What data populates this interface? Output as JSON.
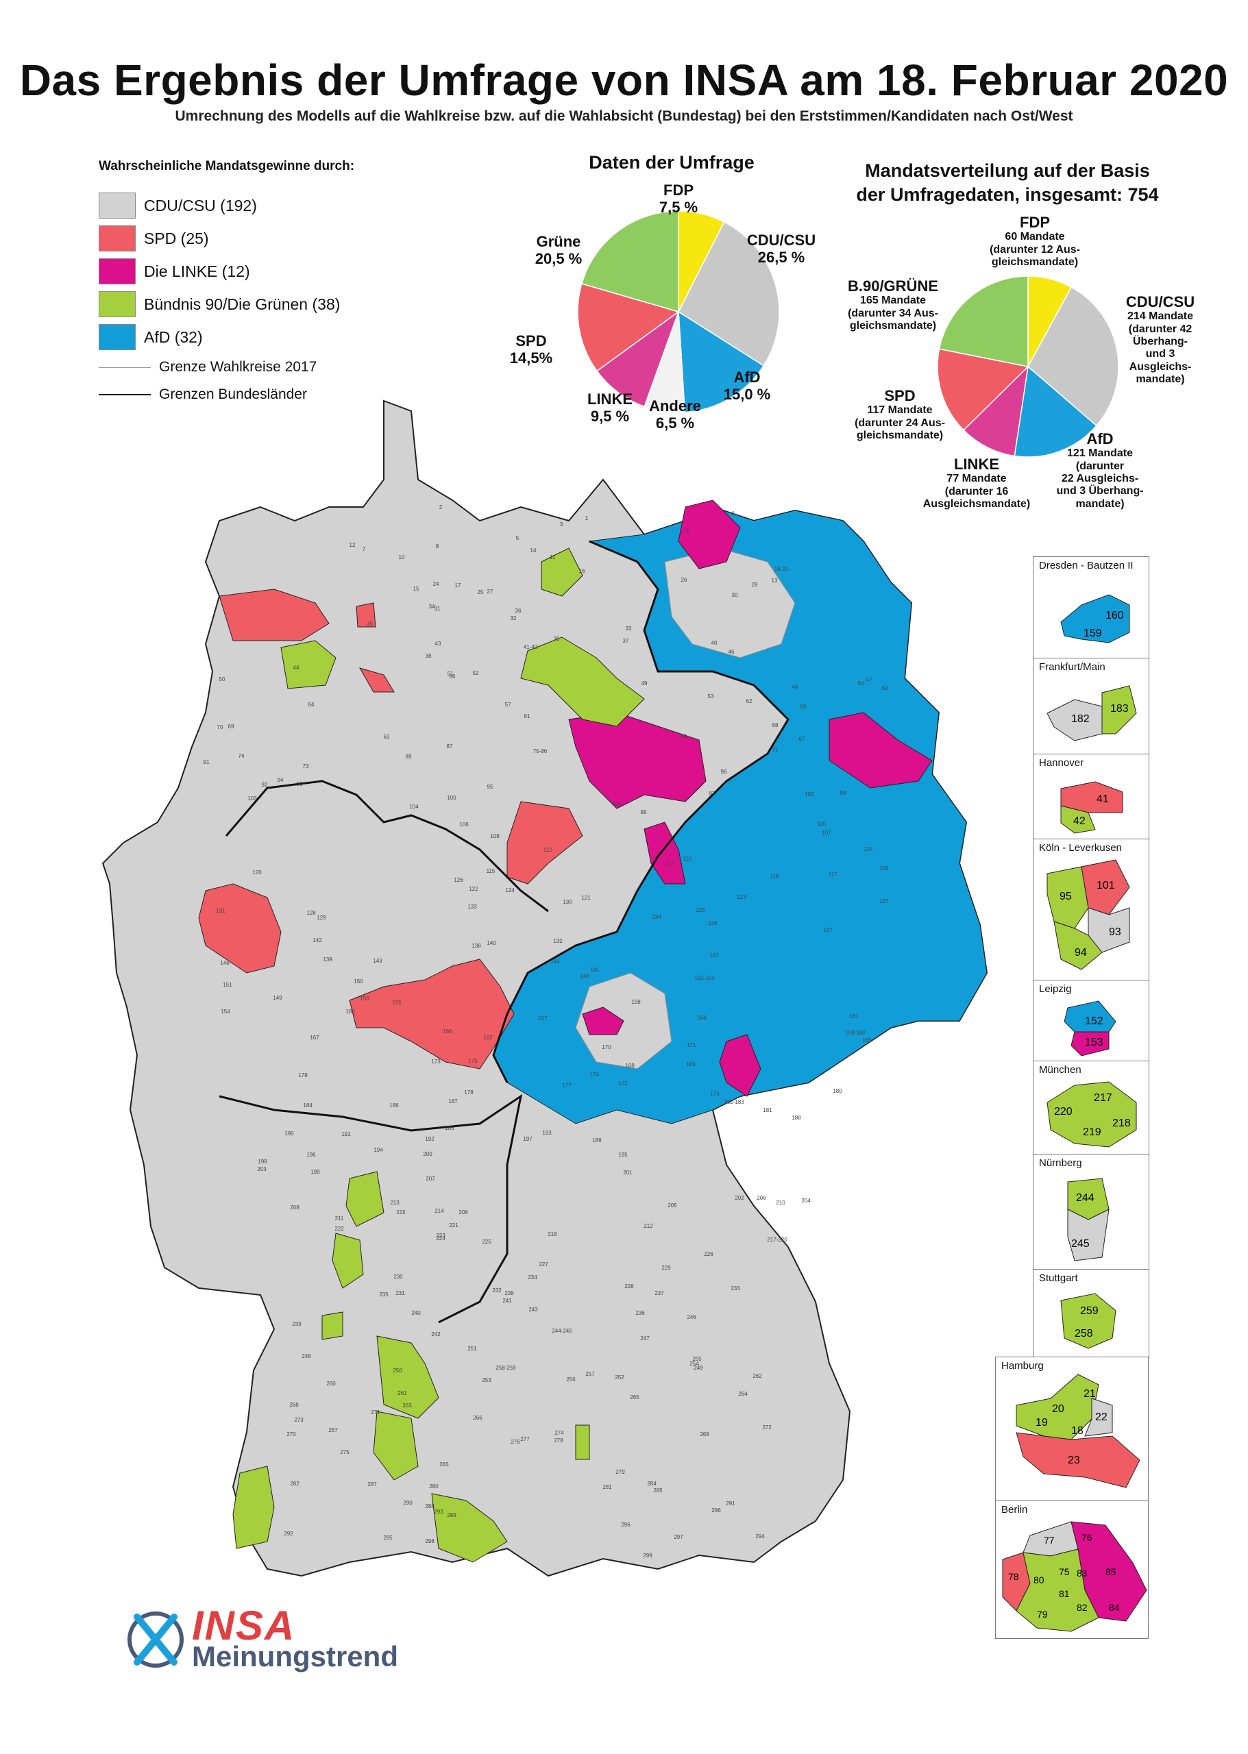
{
  "title": "Das Ergebnis der Umfrage von INSA am 18. Februar 2020",
  "subtitle": "Umrechnung des Modells auf die Wahlkreise bzw. auf die Wahlabsicht (Bundestag) bei den Erststimmen/Kandidaten nach Ost/West",
  "colors": {
    "cdu": "#d2d2d2",
    "spd": "#f05c63",
    "linke": "#dc0f8c",
    "gruene": "#a5cf3c",
    "afd": "#119ed8",
    "fdp": "#f6e80f",
    "andere": "#f2f2f2",
    "pie_gruene": "#8fcc60",
    "pie_linke": "#da3f95",
    "pie_afd": "#1ba0dc"
  },
  "legend": {
    "heading": "Wahrscheinliche Mandatsgewinne durch:",
    "items": [
      {
        "label": "CDU/CSU (192)",
        "color": "#d2d2d2"
      },
      {
        "label": "SPD (25)",
        "color": "#f05c63"
      },
      {
        "label": "Die LINKE (12)",
        "color": "#dc0f8c"
      },
      {
        "label": "Bündnis 90/Die Grünen (38)",
        "color": "#a5cf3c"
      },
      {
        "label": "AfD (32)",
        "color": "#119ed8"
      }
    ],
    "lines": [
      {
        "label": "Grenze Wahlkreise 2017",
        "style": "thin-gray"
      },
      {
        "label": "Grenzen Bundesländer",
        "style": "thick-black"
      }
    ]
  },
  "chart_data": [
    {
      "type": "pie",
      "title": "Daten der Umfrage",
      "unit": "%",
      "slices": [
        {
          "name": "FDP",
          "value": 7.5,
          "label": "7,5 %",
          "color": "#f6e80f"
        },
        {
          "name": "CDU/CSU",
          "value": 26.5,
          "label": "26,5 %",
          "color": "#c8c8c8"
        },
        {
          "name": "AfD",
          "value": 15.0,
          "label": "15,0 %",
          "color": "#1ba0dc"
        },
        {
          "name": "Andere",
          "value": 6.5,
          "label": "6,5 %",
          "color": "#f2f2f2"
        },
        {
          "name": "LINKE",
          "value": 9.5,
          "label": "9,5 %",
          "color": "#da3f95"
        },
        {
          "name": "SPD",
          "value": 14.5,
          "label": "14,5%",
          "color": "#f05c63"
        },
        {
          "name": "Grüne",
          "value": 20.5,
          "label": "20,5 %",
          "color": "#8fcc60"
        }
      ]
    },
    {
      "type": "pie",
      "title": "Mandatsverteilung auf der Basis der Umfragedaten, insgesamt: 754",
      "title_lines": [
        "Mandatsverteilung auf der Basis",
        "der Umfragedaten, insgesamt: 754"
      ],
      "total": 754,
      "slices": [
        {
          "name": "FDP",
          "value": 60,
          "label": "60 Mandate",
          "note": [
            "(darunter 12 Aus-",
            "gleichsmandate)"
          ],
          "color": "#f6e80f"
        },
        {
          "name": "CDU/CSU",
          "value": 214,
          "label": "214 Mandate",
          "note": [
            "(darunter 42",
            "Überhang-",
            "und 3",
            "Ausgleichs-",
            "mandate)"
          ],
          "color": "#c8c8c8"
        },
        {
          "name": "AfD",
          "value": 121,
          "label": "121 Mandate",
          "note": [
            "(darunter",
            "22 Ausgleichs-",
            "und 3 Überhang-",
            "mandate)"
          ],
          "color": "#1ba0dc"
        },
        {
          "name": "LINKE",
          "value": 77,
          "label": "77 Mandate",
          "note": [
            "(darunter 16",
            "Ausgleichsmandate)"
          ],
          "color": "#da3f95"
        },
        {
          "name": "SPD",
          "value": 117,
          "label": "117 Mandate",
          "note": [
            "(darunter 24 Aus-",
            "gleichsmandate)"
          ],
          "color": "#f05c63"
        },
        {
          "name": "B.90/GRÜNE",
          "value": 165,
          "label": "165 Mandate",
          "note": [
            "(darunter 34 Aus-",
            "gleichsmandate)"
          ],
          "color": "#8fcc60"
        }
      ]
    }
  ],
  "map_labels": [
    "1",
    "2",
    "3",
    "4",
    "5",
    "6",
    "7",
    "8",
    "10",
    "11",
    "12",
    "13",
    "14",
    "15",
    "16",
    "17",
    "18-23",
    "24",
    "25",
    "26",
    "27",
    "29",
    "30",
    "31",
    "32",
    "33",
    "34",
    "35",
    "36",
    "37",
    "38",
    "39",
    "40",
    "41-42",
    "43",
    "44",
    "46",
    "47",
    "48",
    "49",
    "50",
    "51",
    "52",
    "53",
    "54",
    "56",
    "57",
    "59",
    "60",
    "61",
    "62",
    "63",
    "64",
    "65",
    "67",
    "68",
    "69",
    "70",
    "71",
    "73",
    "74",
    "75-86",
    "87",
    "89",
    "90",
    "91",
    "92",
    "94",
    "95",
    "96",
    "97",
    "98",
    "99",
    "100",
    "102",
    "103",
    "104",
    "105",
    "106",
    "107",
    "109",
    "110",
    "112",
    "113",
    "114",
    "115",
    "116",
    "117",
    "118",
    "119",
    "120",
    "121",
    "122",
    "123",
    "124",
    "125",
    "126",
    "127",
    "128",
    "129",
    "130",
    "131",
    "132",
    "133",
    "134",
    "136",
    "137",
    "138",
    "139",
    "140",
    "141",
    "142",
    "143",
    "144",
    "146",
    "147",
    "148",
    "149",
    "150",
    "151",
    "152-153",
    "154",
    "155",
    "156",
    "157",
    "158",
    "159-160",
    "161",
    "162",
    "163",
    "164",
    "165",
    "166",
    "167",
    "168",
    "169",
    "170",
    "171",
    "172",
    "173",
    "174",
    "175",
    "176",
    "177",
    "178",
    "179",
    "180",
    "181",
    "182-183",
    "184",
    "185",
    "186",
    "187",
    "188",
    "189",
    "190",
    "191",
    "192",
    "193",
    "194",
    "195",
    "196",
    "197",
    "198",
    "199",
    "200",
    "201",
    "202",
    "203",
    "204",
    "205",
    "206",
    "207",
    "208",
    "209",
    "210",
    "211",
    "212",
    "213",
    "214",
    "215",
    "216",
    "217-220",
    "221",
    "222",
    "223",
    "224",
    "225",
    "226",
    "227",
    "228",
    "229",
    "230",
    "231",
    "232",
    "233",
    "234",
    "235",
    "236",
    "237",
    "238",
    "239",
    "240",
    "241",
    "242",
    "243",
    "244-245",
    "246",
    "247",
    "248",
    "249",
    "250",
    "251",
    "252",
    "253",
    "254",
    "255",
    "256",
    "257",
    "258-259",
    "260",
    "261",
    "262",
    "263",
    "264",
    "265",
    "266",
    "267",
    "268",
    "269",
    "270",
    "271",
    "272",
    "273",
    "274",
    "275",
    "276",
    "277",
    "278",
    "279",
    "280",
    "281",
    "282",
    "283",
    "284",
    "285",
    "286",
    "287",
    "288",
    "289",
    "290",
    "291",
    "292",
    "293",
    "294",
    "295",
    "296",
    "297",
    "298",
    "299"
  ],
  "insets": [
    {
      "title": "Dresden - Bautzen II",
      "labels": [
        "160",
        "159"
      ]
    },
    {
      "title": "Frankfurt/Main",
      "labels": [
        "182",
        "183"
      ]
    },
    {
      "title": "Hannover",
      "labels": [
        "41",
        "42"
      ]
    },
    {
      "title": "Köln -  Leverkusen",
      "labels": [
        "95",
        "101",
        "93",
        "94"
      ]
    },
    {
      "title": "Leipzig",
      "labels": [
        "152",
        "153"
      ]
    },
    {
      "title": "München",
      "labels": [
        "217",
        "220",
        "218",
        "219"
      ]
    },
    {
      "title": "Nürnberg",
      "labels": [
        "244",
        "245"
      ]
    },
    {
      "title": "Stuttgart",
      "labels": [
        "259",
        "258"
      ]
    },
    {
      "title": "Hamburg",
      "labels": [
        "21",
        "20",
        "22",
        "19",
        "18",
        "23"
      ]
    },
    {
      "title": "Berlin",
      "labels": [
        "77",
        "76",
        "78",
        "80",
        "75",
        "83",
        "85",
        "81",
        "79",
        "82",
        "84"
      ]
    }
  ],
  "logo": {
    "word1": "INSA",
    "word2": "Meinungstrend"
  }
}
